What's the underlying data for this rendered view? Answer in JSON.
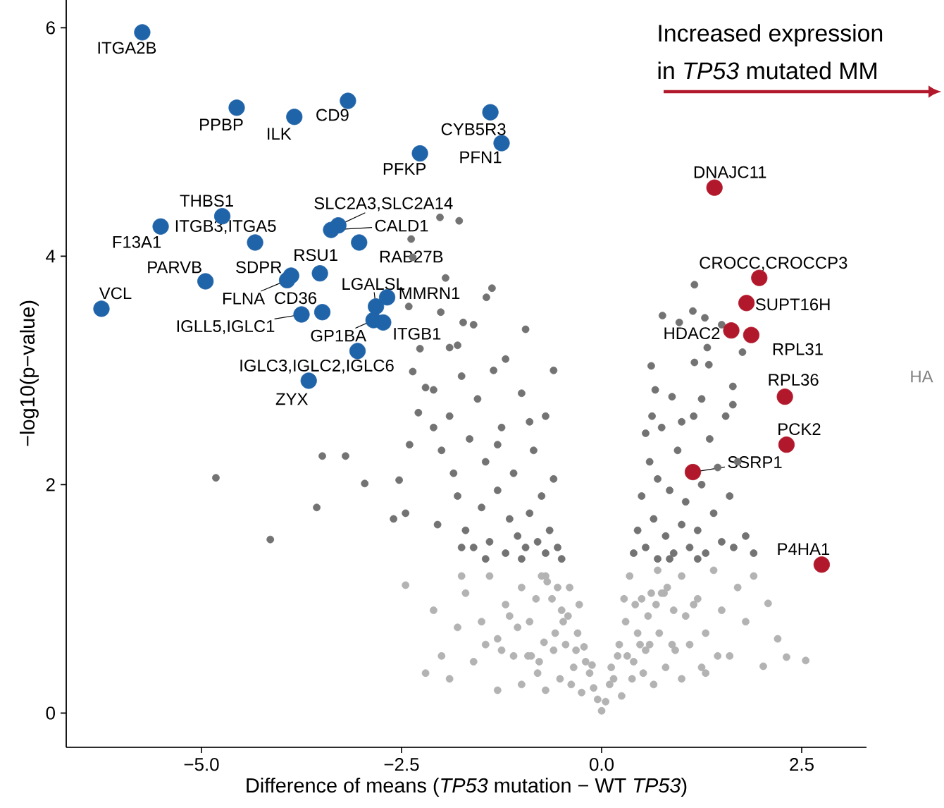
{
  "chart_data": {
    "type": "scatter",
    "xlabel": "Difference of means (*TP53* mutation − WT *TP53*)",
    "ylabel": "−log10(p−value)",
    "xlim": [
      -6.69,
      3.31
    ],
    "ylim": [
      -0.3,
      6.25
    ],
    "xticks": [
      {
        "value": -5,
        "label": "−5.0"
      },
      {
        "value": -2.5,
        "label": "−2.5"
      },
      {
        "value": 0,
        "label": "0.0"
      },
      {
        "value": 2.5,
        "label": "2.5"
      }
    ],
    "yticks": [
      0,
      2,
      4,
      6
    ],
    "marker": "circle",
    "series": [
      {
        "color": "#1f63a8",
        "x": [
          -5.74,
          -4.56,
          -3.84,
          -3.17,
          -1.39,
          -1.25,
          -2.27,
          -4.74,
          -5.51,
          -4.33,
          -3.29,
          -3.38,
          -3.03,
          -3.88,
          -3.93,
          -3.52,
          -4.95,
          -6.25,
          -3.49,
          -3.75,
          -2.82,
          -2.68,
          -2.85,
          -2.73,
          -3.05,
          -3.66
        ],
        "values": [
          5.96,
          5.3,
          5.22,
          5.36,
          5.26,
          4.99,
          4.9,
          4.35,
          4.26,
          4.12,
          4.27,
          4.23,
          4.12,
          3.83,
          3.79,
          3.85,
          3.78,
          3.54,
          3.51,
          3.49,
          3.56,
          3.64,
          3.44,
          3.42,
          3.17,
          2.91
        ]
      },
      {
        "color": "#b2182b",
        "x": [
          1.41,
          1.97,
          1.81,
          1.62,
          1.87,
          2.29,
          2.31,
          1.14,
          2.75
        ],
        "values": [
          4.6,
          3.81,
          3.59,
          3.35,
          3.31,
          2.77,
          2.35,
          2.11,
          1.3
        ]
      },
      {
        "color": "#737373",
        "x": [
          -4.82,
          -3.49,
          -3.2,
          -3.56,
          -4.14,
          -2.96,
          -2.53,
          -2.45,
          -2.02,
          -1.78,
          -2.38,
          -2.36,
          -1.95,
          -2.41,
          -2.01,
          -1.73,
          -2.27,
          -1.8,
          -2.36,
          -2.1,
          -2.29,
          -1.44,
          -1.37,
          -0.95,
          -2.2,
          -2.1,
          -2.0,
          -1.9,
          -1.85,
          -1.8,
          -1.75,
          -1.7,
          -1.65,
          -1.6,
          -1.55,
          -1.5,
          -1.45,
          -1.4,
          -1.35,
          -1.3,
          -1.25,
          -1.2,
          -1.15,
          -1.1,
          -1.05,
          -1.0,
          -0.95,
          -0.9,
          -0.85,
          -0.8,
          -0.75,
          -0.7,
          -0.65,
          -0.6,
          -0.55,
          -0.5,
          -2.4,
          -2.6,
          -1.9,
          -1.6,
          -1.2,
          -0.9,
          -2.05,
          -1.75,
          -1.45,
          -1.0,
          -1.3,
          -0.7,
          -0.6,
          1.16,
          0.76,
          0.97,
          1.14,
          1.29,
          1.5,
          1.32,
          1.76,
          0.62,
          0.67,
          1.16,
          1.34,
          1.64,
          1.64,
          0.88,
          0.63,
          1.9,
          0.4,
          0.45,
          0.5,
          0.55,
          0.6,
          0.65,
          0.7,
          0.75,
          0.8,
          0.85,
          0.9,
          0.95,
          1.0,
          1.05,
          1.1,
          1.15,
          1.2,
          1.25,
          1.3,
          1.35,
          1.4,
          1.45,
          1.5,
          1.6,
          1.7,
          1.8,
          0.55,
          0.7,
          1.0,
          1.25,
          1.55,
          1.65,
          0.85,
          1.2
        ],
        "values": [
          2.06,
          2.25,
          2.25,
          1.8,
          1.52,
          2.01,
          2.04,
          1.75,
          4.34,
          4.31,
          4.15,
          3.99,
          3.81,
          3.56,
          3.51,
          3.42,
          3.19,
          3.22,
          2.99,
          2.83,
          2.63,
          3.64,
          3.72,
          3.36,
          2.85,
          2.5,
          2.3,
          2.6,
          2.1,
          1.9,
          2.95,
          1.6,
          2.4,
          1.45,
          2.75,
          1.8,
          2.2,
          1.5,
          3.0,
          1.95,
          2.5,
          1.4,
          1.7,
          2.1,
          1.55,
          2.8,
          1.45,
          1.75,
          2.3,
          1.5,
          1.9,
          1.4,
          1.6,
          2.05,
          1.45,
          1.35,
          2.35,
          1.7,
          3.2,
          3.4,
          3.1,
          2.55,
          1.65,
          1.45,
          1.35,
          1.35,
          2.35,
          2.6,
          3.0,
          3.75,
          3.48,
          3.42,
          3.52,
          3.46,
          3.4,
          3.2,
          3.16,
          3.04,
          2.83,
          3.07,
          3.05,
          2.86,
          2.7,
          2.77,
          2.6,
          1.4,
          1.4,
          1.6,
          1.9,
          1.45,
          2.2,
          1.7,
          1.35,
          2.5,
          1.55,
          1.95,
          1.4,
          2.3,
          1.65,
          1.85,
          1.45,
          2.6,
          1.6,
          2.0,
          1.4,
          2.4,
          1.75,
          2.15,
          1.5,
          1.9,
          2.2,
          1.55,
          2.45,
          2.05,
          2.55,
          2.75,
          2.6,
          1.45,
          1.35,
          1.35
        ]
      },
      {
        "color": "#b3b3b3",
        "x": [
          0.0,
          0.05,
          -0.05,
          0.1,
          -0.1,
          0.2,
          -0.2,
          0.3,
          -0.3,
          0.35,
          -0.4,
          0.5,
          -0.5,
          0.6,
          -0.6,
          0.7,
          -0.7,
          0.8,
          -0.8,
          0.9,
          -0.9,
          1.0,
          -1.0,
          1.1,
          -1.1,
          1.2,
          -1.2,
          1.3,
          -1.3,
          1.4,
          -1.4,
          1.5,
          -1.5,
          1.6,
          -1.6,
          1.7,
          -1.7,
          1.8,
          -1.8,
          1.9,
          -1.9,
          -2.0,
          -2.1,
          -2.45,
          -1.75,
          -2.2,
          0.4,
          -0.35,
          0.15,
          -0.15,
          0.25,
          -0.25,
          0.45,
          -0.45,
          1.0,
          -1.0,
          0.65,
          -0.7,
          1.3,
          -1.3,
          2.08,
          2.2,
          2.31,
          2.55,
          2.02,
          0.12,
          -0.12,
          0.22,
          -0.22,
          0.32,
          -0.32,
          0.42,
          -0.42,
          0.52,
          -0.52,
          0.62,
          -0.62,
          0.72,
          -0.72,
          0.82,
          -0.82,
          0.92,
          -0.92,
          1.05,
          -1.05,
          1.15,
          -1.15,
          0.28,
          -0.28,
          0.38,
          -0.38,
          0.48,
          -0.48,
          0.58,
          -0.58,
          0.68,
          -0.68,
          0.78,
          -0.78,
          0.88,
          -0.88,
          1.25,
          -1.25,
          1.45,
          -1.45,
          0.55,
          -0.55,
          0.75,
          -0.75
        ],
        "values": [
          0.02,
          0.1,
          0.12,
          0.25,
          0.22,
          0.5,
          0.45,
          0.8,
          0.7,
          1.2,
          1.1,
          1.0,
          0.9,
          0.6,
          0.55,
          1.25,
          1.2,
          0.4,
          0.35,
          0.9,
          0.8,
          1.2,
          1.1,
          0.6,
          0.5,
          1.0,
          0.95,
          0.7,
          0.65,
          1.25,
          1.2,
          0.9,
          0.8,
          0.5,
          0.45,
          1.1,
          1.05,
          0.8,
          0.75,
          1.2,
          0.3,
          0.5,
          0.9,
          1.12,
          1.2,
          0.35,
          0.45,
          0.4,
          0.3,
          0.35,
          0.15,
          0.18,
          0.7,
          0.6,
          0.3,
          0.25,
          0.25,
          0.2,
          0.35,
          0.2,
          0.96,
          0.65,
          0.49,
          0.46,
          0.41,
          0.4,
          0.42,
          0.6,
          0.58,
          0.5,
          0.55,
          0.95,
          0.85,
          0.35,
          0.3,
          1.05,
          1.0,
          0.7,
          0.62,
          1.1,
          1.0,
          0.55,
          0.5,
          0.85,
          0.75,
          0.95,
          0.85,
          1.0,
          0.95,
          0.3,
          0.25,
          0.6,
          0.8,
          0.85,
          0.7,
          0.95,
          1.15,
          1.05,
          0.45,
          0.6,
          0.5,
          0.4,
          0.55,
          0.5,
          0.6,
          0.55,
          1.1,
          1.05,
          1.2
        ]
      }
    ],
    "annotations": [
      {
        "text": "ITGA2B",
        "x": -5.74,
        "y": 5.96
      },
      {
        "text": "PPBP",
        "x": -4.56,
        "y": 5.3
      },
      {
        "text": "ILK",
        "x": -3.84,
        "y": 5.22
      },
      {
        "text": "CD9",
        "x": -3.17,
        "y": 5.36
      },
      {
        "text": "CYB5R3",
        "x": -1.39,
        "y": 5.26
      },
      {
        "text": "PFN1",
        "x": -1.25,
        "y": 4.99
      },
      {
        "text": "PFKP",
        "x": -2.27,
        "y": 4.9
      },
      {
        "text": "THBS1",
        "x": -4.74,
        "y": 4.35
      },
      {
        "text": "F13A1",
        "x": -5.51,
        "y": 4.26
      },
      {
        "text": "ITGB3,ITGA5",
        "x": -4.33,
        "y": 4.12
      },
      {
        "text": "SLC2A3,SLC2A14",
        "x": -3.29,
        "y": 4.27
      },
      {
        "text": "CALD1",
        "x": -3.38,
        "y": 4.23
      },
      {
        "text": "RAB27B",
        "x": -3.03,
        "y": 4.12
      },
      {
        "text": "SDPR",
        "x": -3.88,
        "y": 3.83
      },
      {
        "text": "FLNA",
        "x": -3.93,
        "y": 3.79
      },
      {
        "text": "RSU1",
        "x": -3.52,
        "y": 3.85
      },
      {
        "text": "PARVB",
        "x": -4.95,
        "y": 3.78
      },
      {
        "text": "VCL",
        "x": -6.25,
        "y": 3.54
      },
      {
        "text": "CD36",
        "x": -3.49,
        "y": 3.51
      },
      {
        "text": "IGLL5,IGLC1",
        "x": -3.75,
        "y": 3.49
      },
      {
        "text": "LGALSL",
        "x": -2.82,
        "y": 3.56
      },
      {
        "text": "MMRN1",
        "x": -2.68,
        "y": 3.64
      },
      {
        "text": "GP1BA",
        "x": -2.85,
        "y": 3.44
      },
      {
        "text": "ITGB1",
        "x": -2.73,
        "y": 3.42
      },
      {
        "text": "IGLC3,IGLC2,IGLC6",
        "x": -3.05,
        "y": 3.17
      },
      {
        "text": "ZYX",
        "x": -3.66,
        "y": 2.91
      },
      {
        "text": "DNAJC11",
        "x": 1.41,
        "y": 4.6
      },
      {
        "text": "CROCC,CROCCP3",
        "x": 1.97,
        "y": 3.81
      },
      {
        "text": "SUPT16H",
        "x": 1.81,
        "y": 3.59
      },
      {
        "text": "HDAC2",
        "x": 1.62,
        "y": 3.35
      },
      {
        "text": "RPL31",
        "x": 1.87,
        "y": 3.31
      },
      {
        "text": "RPL36",
        "x": 2.29,
        "y": 2.77
      },
      {
        "text": "PCK2",
        "x": 2.31,
        "y": 2.35
      },
      {
        "text": "SSRP1",
        "x": 1.14,
        "y": 2.11
      },
      {
        "text": "P4HA1",
        "x": 2.75,
        "y": 1.3
      },
      "Increased expression",
      "in *TP53* mutated MM",
      "HA"
    ]
  }
}
